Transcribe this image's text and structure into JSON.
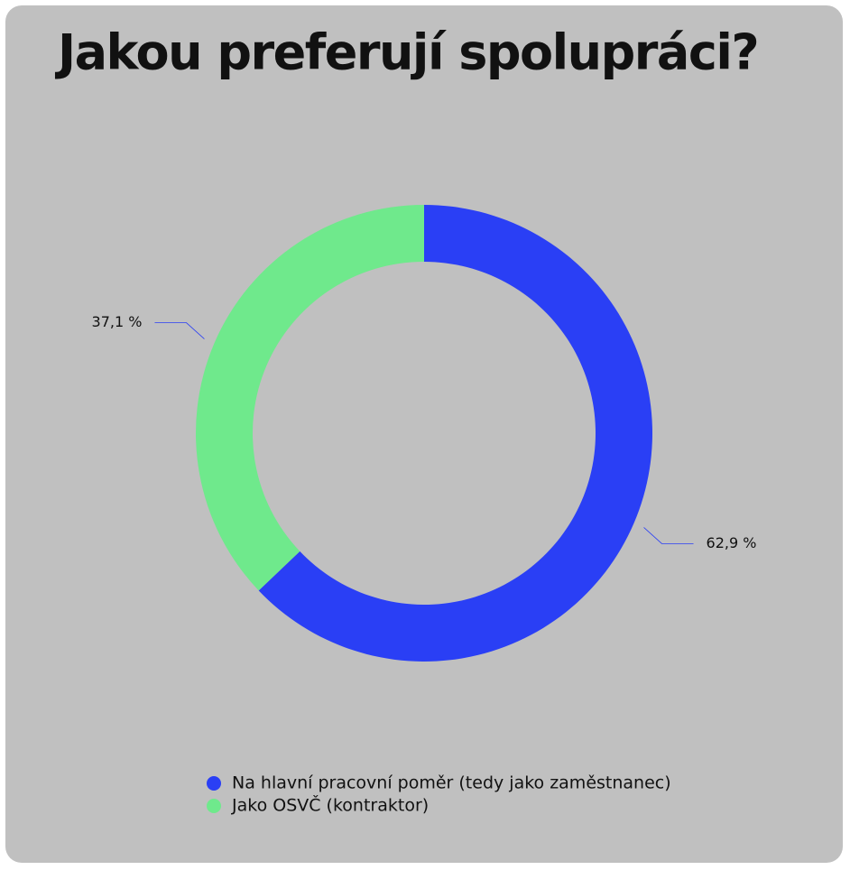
{
  "chart_data": {
    "type": "donut",
    "title": "Jakou preferují spolupráci?",
    "categories": [
      "Na hlavní pracovní poměr (tedy jako zaměstnanec)",
      "Jako OSVČ (kontraktor)"
    ],
    "values": [
      62.9,
      37.1
    ],
    "value_labels": [
      "62,9 %",
      "37,1 %"
    ],
    "colors": [
      "#2a3ff5",
      "#6fe98c"
    ]
  }
}
